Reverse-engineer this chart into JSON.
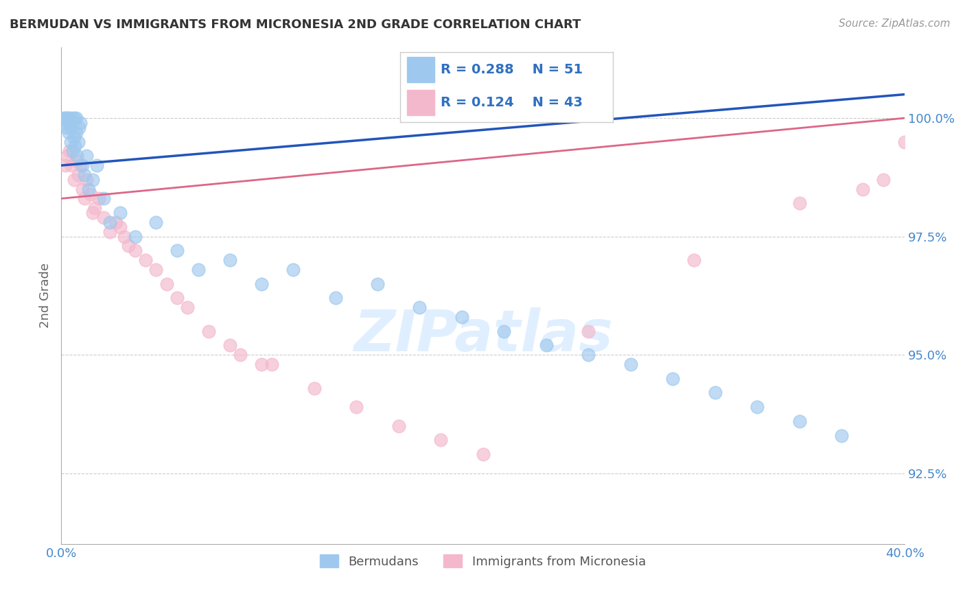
{
  "title": "BERMUDAN VS IMMIGRANTS FROM MICRONESIA 2ND GRADE CORRELATION CHART",
  "source": "Source: ZipAtlas.com",
  "ylabel": "2nd Grade",
  "xlim": [
    0.0,
    40.0
  ],
  "ylim": [
    91.0,
    101.5
  ],
  "yticks": [
    92.5,
    95.0,
    97.5,
    100.0
  ],
  "ytick_labels": [
    "92.5%",
    "95.0%",
    "97.5%",
    "100.0%"
  ],
  "series1_name": "Bermudans",
  "series1_color": "#9ec8ee",
  "series1_line_color": "#2255bb",
  "series1_R": 0.288,
  "series1_N": 51,
  "series2_name": "Immigrants from Micronesia",
  "series2_color": "#f4b8cc",
  "series2_line_color": "#dd6688",
  "series2_R": 0.124,
  "series2_N": 43,
  "legend_text_color": "#3070c0",
  "watermark": "ZIPatlas",
  "background_color": "#ffffff",
  "scatter1_x": [
    0.1,
    0.15,
    0.2,
    0.25,
    0.3,
    0.3,
    0.35,
    0.4,
    0.4,
    0.45,
    0.5,
    0.5,
    0.55,
    0.6,
    0.6,
    0.65,
    0.7,
    0.7,
    0.75,
    0.8,
    0.85,
    0.9,
    1.0,
    1.1,
    1.2,
    1.3,
    1.5,
    1.7,
    2.0,
    2.3,
    2.8,
    3.5,
    4.5,
    5.5,
    6.5,
    8.0,
    9.5,
    11.0,
    13.0,
    15.0,
    17.0,
    19.0,
    21.0,
    23.0,
    25.0,
    27.0,
    29.0,
    31.0,
    33.0,
    35.0,
    37.0
  ],
  "scatter1_y": [
    100.0,
    99.9,
    100.0,
    100.0,
    99.8,
    100.0,
    99.7,
    99.9,
    100.0,
    99.5,
    99.8,
    100.0,
    99.3,
    99.6,
    100.0,
    99.4,
    99.7,
    100.0,
    99.2,
    99.5,
    99.8,
    99.9,
    99.0,
    98.8,
    99.2,
    98.5,
    98.7,
    99.0,
    98.3,
    97.8,
    98.0,
    97.5,
    97.8,
    97.2,
    96.8,
    97.0,
    96.5,
    96.8,
    96.2,
    96.5,
    96.0,
    95.8,
    95.5,
    95.2,
    95.0,
    94.8,
    94.5,
    94.2,
    93.9,
    93.6,
    93.3
  ],
  "scatter2_x": [
    0.2,
    0.3,
    0.4,
    0.5,
    0.6,
    0.7,
    0.8,
    0.9,
    1.0,
    1.1,
    1.2,
    1.4,
    1.6,
    1.8,
    2.0,
    2.3,
    2.6,
    3.0,
    3.5,
    4.0,
    4.5,
    5.0,
    6.0,
    7.0,
    8.0,
    10.0,
    12.0,
    14.0,
    16.0,
    18.0,
    20.0,
    25.0,
    30.0,
    35.0,
    38.0,
    39.0,
    40.0,
    8.5,
    9.5,
    5.5,
    3.2,
    2.8,
    1.5
  ],
  "scatter2_y": [
    99.0,
    99.2,
    99.3,
    99.0,
    98.7,
    99.1,
    98.8,
    99.0,
    98.5,
    98.3,
    98.7,
    98.4,
    98.1,
    98.3,
    97.9,
    97.6,
    97.8,
    97.5,
    97.2,
    97.0,
    96.8,
    96.5,
    96.0,
    95.5,
    95.2,
    94.8,
    94.3,
    93.9,
    93.5,
    93.2,
    92.9,
    95.5,
    97.0,
    98.2,
    98.5,
    98.7,
    99.5,
    95.0,
    94.8,
    96.2,
    97.3,
    97.7,
    98.0
  ],
  "line1_x0": 0.0,
  "line1_y0": 99.0,
  "line1_x1": 40.0,
  "line1_y1": 100.5,
  "line2_x0": 0.0,
  "line2_y0": 98.3,
  "line2_x1": 40.0,
  "line2_y1": 100.0
}
